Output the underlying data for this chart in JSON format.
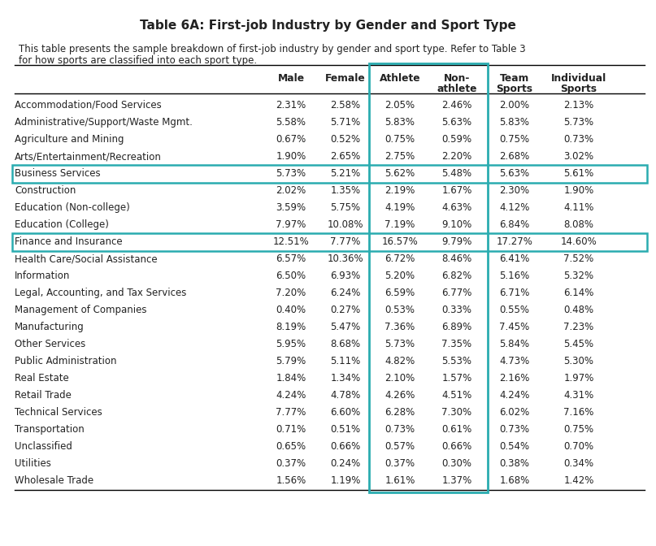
{
  "title": "Table 6A: First-job Industry by Gender and Sport Type",
  "subtitle": "This table presents the sample breakdown of first-job industry by gender and sport type. Refer to Table 3\nfor how sports are classified into each sport type.",
  "columns": [
    "",
    "Male",
    "Female",
    "Athlete",
    "Non-\nathlete",
    "Team\nSports",
    "Individual\nSports"
  ],
  "rows": [
    [
      "Accommodation/Food Services",
      "2.31%",
      "2.58%",
      "2.05%",
      "2.46%",
      "2.00%",
      "2.13%"
    ],
    [
      "Administrative/Support/Waste Mgmt.",
      "5.58%",
      "5.71%",
      "5.83%",
      "5.63%",
      "5.83%",
      "5.73%"
    ],
    [
      "Agriculture and Mining",
      "0.67%",
      "0.52%",
      "0.75%",
      "0.59%",
      "0.75%",
      "0.73%"
    ],
    [
      "Arts/Entertainment/Recreation",
      "1.90%",
      "2.65%",
      "2.75%",
      "2.20%",
      "2.68%",
      "3.02%"
    ],
    [
      "Business Services",
      "5.73%",
      "5.21%",
      "5.62%",
      "5.48%",
      "5.63%",
      "5.61%"
    ],
    [
      "Construction",
      "2.02%",
      "1.35%",
      "2.19%",
      "1.67%",
      "2.30%",
      "1.90%"
    ],
    [
      "Education (Non-college)",
      "3.59%",
      "5.75%",
      "4.19%",
      "4.63%",
      "4.12%",
      "4.11%"
    ],
    [
      "Education (College)",
      "7.97%",
      "10.08%",
      "7.19%",
      "9.10%",
      "6.84%",
      "8.08%"
    ],
    [
      "Finance and Insurance",
      "12.51%",
      "7.77%",
      "16.57%",
      "9.79%",
      "17.27%",
      "14.60%"
    ],
    [
      "Health Care/Social Assistance",
      "6.57%",
      "10.36%",
      "6.72%",
      "8.46%",
      "6.41%",
      "7.52%"
    ],
    [
      "Information",
      "6.50%",
      "6.93%",
      "5.20%",
      "6.82%",
      "5.16%",
      "5.32%"
    ],
    [
      "Legal, Accounting, and Tax Services",
      "7.20%",
      "6.24%",
      "6.59%",
      "6.77%",
      "6.71%",
      "6.14%"
    ],
    [
      "Management of Companies",
      "0.40%",
      "0.27%",
      "0.53%",
      "0.33%",
      "0.55%",
      "0.48%"
    ],
    [
      "Manufacturing",
      "8.19%",
      "5.47%",
      "7.36%",
      "6.89%",
      "7.45%",
      "7.23%"
    ],
    [
      "Other Services",
      "5.95%",
      "8.68%",
      "5.73%",
      "7.35%",
      "5.84%",
      "5.45%"
    ],
    [
      "Public Administration",
      "5.79%",
      "5.11%",
      "4.82%",
      "5.53%",
      "4.73%",
      "5.30%"
    ],
    [
      "Real Estate",
      "1.84%",
      "1.34%",
      "2.10%",
      "1.57%",
      "2.16%",
      "1.97%"
    ],
    [
      "Retail Trade",
      "4.24%",
      "4.78%",
      "4.26%",
      "4.51%",
      "4.24%",
      "4.31%"
    ],
    [
      "Technical Services",
      "7.77%",
      "6.60%",
      "6.28%",
      "7.30%",
      "6.02%",
      "7.16%"
    ],
    [
      "Transportation",
      "0.71%",
      "0.51%",
      "0.73%",
      "0.61%",
      "0.73%",
      "0.75%"
    ],
    [
      "Unclassified",
      "0.65%",
      "0.66%",
      "0.57%",
      "0.66%",
      "0.54%",
      "0.70%"
    ],
    [
      "Utilities",
      "0.37%",
      "0.24%",
      "0.37%",
      "0.30%",
      "0.38%",
      "0.34%"
    ],
    [
      "Wholesale Trade",
      "1.56%",
      "1.19%",
      "1.61%",
      "1.37%",
      "1.68%",
      "1.42%"
    ]
  ],
  "highlighted_rows": [
    4,
    8
  ],
  "teal_color": "#2AACB0",
  "bg_color": "#FFFFFF",
  "text_color": "#222222"
}
